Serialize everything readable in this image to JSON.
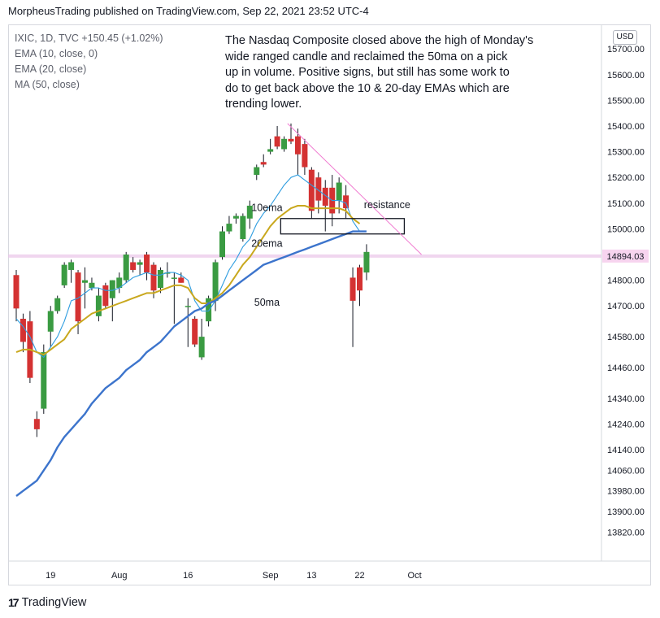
{
  "header": {
    "published_by": "MorpheusTrading published on TradingView.com, Sep 22, 2021 23:52 UTC-4"
  },
  "legend": {
    "line1": "IXIC, 1D, TVC  +150.45 (+1.02%)",
    "line2": "EMA (10, close, 0)",
    "line3": "EMA (20, close)",
    "line4": "MA (50, close)"
  },
  "note": {
    "line1": "The Nasdaq Composite closed above the high of Monday's",
    "line2": "wide ranged candle and reclaimed the 50ma on a pick",
    "line3": "up in volume.  Positive signs, but still has some work to",
    "line4": "do to get back above the 10 & 20-day EMAs which are",
    "line5": "trending lower."
  },
  "currency_label": "USD",
  "footer": {
    "brand": "TradingView",
    "brand_icon": "tradingview-logo-icon"
  },
  "colors": {
    "up": "#3a9b42",
    "down": "#d43232",
    "ema10": "#2e9de0",
    "ema20": "#c9a81e",
    "ma50": "#3c74cc",
    "trendline": "#f07ad0",
    "price_line": "#e9c4e8",
    "price_badge": "#f7d4ef"
  },
  "chart_data": {
    "type": "candlestick",
    "y_axis": {
      "ticks": [
        13820,
        13900,
        13980,
        14060,
        14140,
        14240,
        14340,
        14460,
        14580,
        14700,
        14800,
        14900,
        15000,
        15100,
        15200,
        15300,
        15400,
        15500,
        15600,
        15700
      ],
      "tick_labels": [
        "13820.00",
        "13900.00",
        "13980.00",
        "14060.00",
        "14140.00",
        "14240.00",
        "14340.00",
        "14460.00",
        "14580.00",
        "14700.00",
        "14800.00",
        "14900.00",
        "15000.00",
        "15100.00",
        "15200.00",
        "15300.00",
        "15400.00",
        "15500.00",
        "15600.00",
        "15700.00"
      ],
      "current_price_label": "14894.03",
      "current_price": 14894.03
    },
    "x_axis": {
      "labels": [
        {
          "text": "19",
          "bar_index": 5
        },
        {
          "text": "Aug",
          "bar_index": 15
        },
        {
          "text": "16",
          "bar_index": 25
        },
        {
          "text": "Sep",
          "bar_index": 37
        },
        {
          "text": "13",
          "bar_index": 43
        },
        {
          "text": "22",
          "bar_index": 50
        },
        {
          "text": "Oct",
          "bar_index": 58
        }
      ]
    },
    "candles": [
      {
        "o": 14820,
        "h": 14840,
        "l": 14640,
        "c": 14690
      },
      {
        "o": 14650,
        "h": 14670,
        "l": 14520,
        "c": 14560
      },
      {
        "o": 14640,
        "h": 14680,
        "l": 14400,
        "c": 14420
      },
      {
        "o": 14260,
        "h": 14290,
        "l": 14190,
        "c": 14220
      },
      {
        "o": 14300,
        "h": 14550,
        "l": 14280,
        "c": 14520
      },
      {
        "o": 14600,
        "h": 14700,
        "l": 14540,
        "c": 14680
      },
      {
        "o": 14680,
        "h": 14740,
        "l": 14670,
        "c": 14730
      },
      {
        "o": 14780,
        "h": 14870,
        "l": 14770,
        "c": 14860
      },
      {
        "o": 14840,
        "h": 14880,
        "l": 14790,
        "c": 14870
      },
      {
        "o": 14830,
        "h": 14840,
        "l": 14590,
        "c": 14640
      },
      {
        "o": 14790,
        "h": 14850,
        "l": 14690,
        "c": 14800
      },
      {
        "o": 14770,
        "h": 14810,
        "l": 14760,
        "c": 14790
      },
      {
        "o": 14660,
        "h": 14770,
        "l": 14640,
        "c": 14740
      },
      {
        "o": 14780,
        "h": 14790,
        "l": 14690,
        "c": 14700
      },
      {
        "o": 14730,
        "h": 14800,
        "l": 14640,
        "c": 14800
      },
      {
        "o": 14770,
        "h": 14830,
        "l": 14750,
        "c": 14810
      },
      {
        "o": 14800,
        "h": 14910,
        "l": 14790,
        "c": 14900
      },
      {
        "o": 14870,
        "h": 14890,
        "l": 14830,
        "c": 14840
      },
      {
        "o": 14860,
        "h": 14880,
        "l": 14820,
        "c": 14870
      },
      {
        "o": 14900,
        "h": 14910,
        "l": 14800,
        "c": 14830
      },
      {
        "o": 14860,
        "h": 14870,
        "l": 14730,
        "c": 14760
      },
      {
        "o": 14770,
        "h": 14850,
        "l": 14750,
        "c": 14840
      },
      {
        "o": 14830,
        "h": 14870,
        "l": 14810,
        "c": 14830
      },
      {
        "o": 14810,
        "h": 14830,
        "l": 14630,
        "c": 14810
      },
      {
        "o": 14810,
        "h": 14830,
        "l": 14790,
        "c": 14790
      },
      {
        "o": 14700,
        "h": 14730,
        "l": 14540,
        "c": 14700
      },
      {
        "o": 14650,
        "h": 14660,
        "l": 14540,
        "c": 14550
      },
      {
        "o": 14500,
        "h": 14650,
        "l": 14490,
        "c": 14580
      },
      {
        "o": 14640,
        "h": 14740,
        "l": 14620,
        "c": 14730
      },
      {
        "o": 14720,
        "h": 14880,
        "l": 14680,
        "c": 14870
      },
      {
        "o": 14890,
        "h": 15010,
        "l": 14880,
        "c": 14990
      },
      {
        "o": 14990,
        "h": 15050,
        "l": 14980,
        "c": 15020
      },
      {
        "o": 15040,
        "h": 15060,
        "l": 15020,
        "c": 15050
      },
      {
        "o": 14960,
        "h": 15060,
        "l": 14950,
        "c": 15050
      },
      {
        "o": 15040,
        "h": 15110,
        "l": 15000,
        "c": 15090
      },
      {
        "o": 15210,
        "h": 15250,
        "l": 15190,
        "c": 15240
      },
      {
        "o": 15260,
        "h": 15290,
        "l": 15240,
        "c": 15250
      },
      {
        "o": 15300,
        "h": 15350,
        "l": 15290,
        "c": 15310
      },
      {
        "o": 15360,
        "h": 15400,
        "l": 15310,
        "c": 15320
      },
      {
        "o": 15310,
        "h": 15360,
        "l": 15300,
        "c": 15350
      },
      {
        "o": 15350,
        "h": 15410,
        "l": 15330,
        "c": 15340
      },
      {
        "o": 15360,
        "h": 15390,
        "l": 15210,
        "c": 15290
      },
      {
        "o": 15330,
        "h": 15350,
        "l": 15210,
        "c": 15240
      },
      {
        "o": 15230,
        "h": 15240,
        "l": 15040,
        "c": 15070
      },
      {
        "o": 15200,
        "h": 15220,
        "l": 15060,
        "c": 15110
      },
      {
        "o": 15160,
        "h": 15190,
        "l": 14990,
        "c": 15090
      },
      {
        "o": 15160,
        "h": 15210,
        "l": 15010,
        "c": 15060
      },
      {
        "o": 15110,
        "h": 15200,
        "l": 15060,
        "c": 15180
      },
      {
        "o": 15130,
        "h": 15170,
        "l": 15040,
        "c": 15080
      },
      {
        "o": 14810,
        "h": 14850,
        "l": 14540,
        "c": 14720
      },
      {
        "o": 14850,
        "h": 14860,
        "l": 14700,
        "c": 14760
      },
      {
        "o": 14830,
        "h": 14940,
        "l": 14800,
        "c": 14910
      }
    ],
    "series": [
      {
        "name": "EMA (10, close, 0)",
        "color_key": "ema10",
        "values": [
          14650,
          14620,
          14580,
          14520,
          14500,
          14540,
          14580,
          14640,
          14720,
          14730,
          14750,
          14770,
          14770,
          14760,
          14760,
          14770,
          14790,
          14810,
          14820,
          14830,
          14820,
          14820,
          14830,
          14830,
          14820,
          14800,
          14720,
          14680,
          14680,
          14720,
          14780,
          14840,
          14880,
          14930,
          14960,
          15020,
          15060,
          15090,
          15130,
          15170,
          15200,
          15210,
          15190,
          15170,
          15150,
          15130,
          15110,
          15110,
          15100,
          15030,
          14990,
          null
        ]
      },
      {
        "name": "EMA (20, close)",
        "color_key": "ema20",
        "values": [
          14520,
          14530,
          14530,
          14520,
          14510,
          14530,
          14550,
          14570,
          14610,
          14630,
          14650,
          14670,
          14680,
          14690,
          14700,
          14710,
          14720,
          14730,
          14740,
          14750,
          14750,
          14760,
          14770,
          14780,
          14780,
          14770,
          14730,
          14710,
          14710,
          14730,
          14750,
          14780,
          14820,
          14860,
          14890,
          14930,
          14970,
          15010,
          15040,
          15060,
          15080,
          15090,
          15090,
          15080,
          15080,
          15080,
          15080,
          15080,
          15070,
          15040,
          15020,
          null
        ]
      },
      {
        "name": "MA (50, close)",
        "color_key": "ma50",
        "values": [
          13960,
          13980,
          14000,
          14020,
          14060,
          14100,
          14150,
          14190,
          14220,
          14250,
          14280,
          14320,
          14350,
          14380,
          14400,
          14420,
          14450,
          14470,
          14490,
          14520,
          14540,
          14560,
          14590,
          14620,
          14640,
          14660,
          14680,
          14690,
          14710,
          14720,
          14740,
          14760,
          14780,
          14800,
          14820,
          14840,
          14860,
          14870,
          14880,
          14890,
          14900,
          14910,
          14920,
          14930,
          14940,
          14950,
          14960,
          14970,
          14980,
          14990,
          14990,
          14990
        ]
      }
    ],
    "annotations": [
      {
        "text": "10ema",
        "bar_index": 36.5,
        "price": 15070
      },
      {
        "text": "20ema",
        "bar_index": 36.5,
        "price": 14930
      },
      {
        "text": "50ma",
        "bar_index": 36.5,
        "price": 14700
      },
      {
        "text": "resistance",
        "bar_index": 54,
        "price": 15080
      }
    ],
    "resistance_box": {
      "bar_start": 38.5,
      "bar_end": 56.5,
      "price_top": 15040,
      "price_bottom": 14980
    },
    "trendline": {
      "bar_start": 39.5,
      "price_start": 15410,
      "bar_end": 59,
      "price_end": 14900
    }
  }
}
